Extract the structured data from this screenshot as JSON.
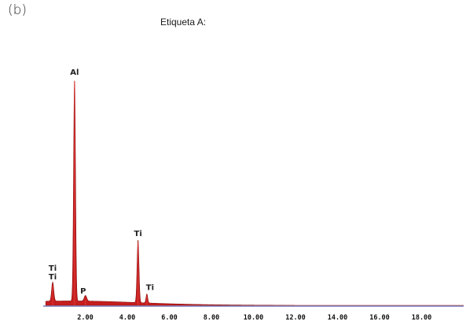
{
  "panel_label": "(b)",
  "chart_data": {
    "type": "area",
    "title": "Etiqueta A:",
    "xlabel": "",
    "ylabel": "",
    "xlim": [
      0,
      20
    ],
    "ylim": [
      0,
      100
    ],
    "grid": false,
    "x_ticks": [
      {
        "value": 2,
        "label": "2.00"
      },
      {
        "value": 4,
        "label": "4.00"
      },
      {
        "value": 6,
        "label": "6.00"
      },
      {
        "value": 8,
        "label": "8.00"
      },
      {
        "value": 10,
        "label": "10.00"
      },
      {
        "value": 12,
        "label": "12.00"
      },
      {
        "value": 14,
        "label": "14.00"
      },
      {
        "value": 16,
        "label": "16.00"
      },
      {
        "value": 18,
        "label": "18.00"
      }
    ],
    "peaks": [
      {
        "label": "Ti",
        "x": 0.45,
        "y": 8.5
      },
      {
        "label": "Al",
        "x": 1.49,
        "y": 100
      },
      {
        "label": "P",
        "x": 2.01,
        "y": 2.5
      },
      {
        "label": "Ti",
        "x": 4.51,
        "y": 28
      },
      {
        "label": "Ti",
        "x": 4.93,
        "y": 4
      }
    ],
    "colors": {
      "spectrum_fill": "#c41e1e",
      "spectrum_stroke": "#8b0f0f",
      "baseline": "#7777bb"
    }
  }
}
